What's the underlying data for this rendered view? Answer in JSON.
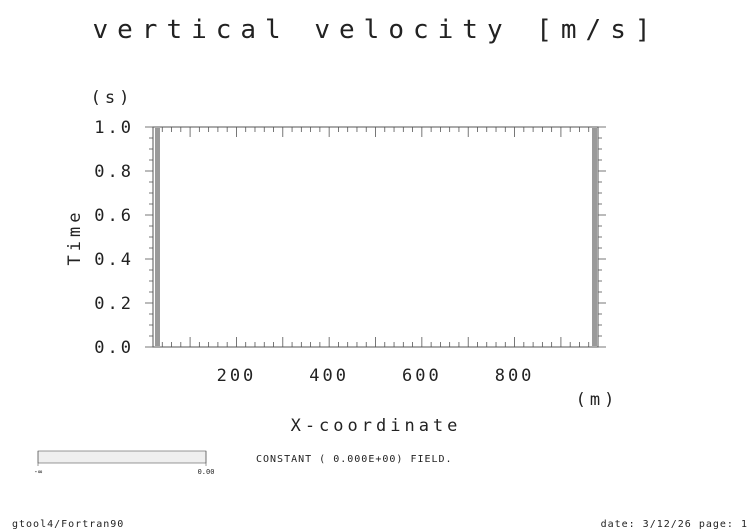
{
  "chart_data": {
    "type": "heatmap",
    "title": "vertical velocity [m/s]",
    "xlabel": "X-coordinate",
    "ylabel": "Time",
    "x_unit": "(m)",
    "y_unit": "(s)",
    "xlim": [
      20,
      980
    ],
    "ylim": [
      0.0,
      1.0
    ],
    "x_major_ticks": [
      100,
      200,
      300,
      400,
      500,
      600,
      700,
      800,
      900
    ],
    "x_tick_labels": [
      "200",
      "400",
      "600",
      "800"
    ],
    "x_tick_label_values": [
      200,
      400,
      600,
      800
    ],
    "x_minor_step": 20,
    "y_ticks": [
      0.0,
      0.2,
      0.4,
      0.6,
      0.8,
      1.0
    ],
    "y_tick_labels": [
      "0.0",
      "0.2",
      "0.4",
      "0.6",
      "0.8",
      "1.0"
    ],
    "y_minor_step": 0.05,
    "field_message": "CONSTANT ( 0.000E+00) FIELD.",
    "colorbar": {
      "min_label": "-∞",
      "max_label": "0.00"
    },
    "grid": false
  },
  "footer": {
    "left": "gtool4/Fortran90",
    "right": "date: 3/12/26 page: 1"
  }
}
